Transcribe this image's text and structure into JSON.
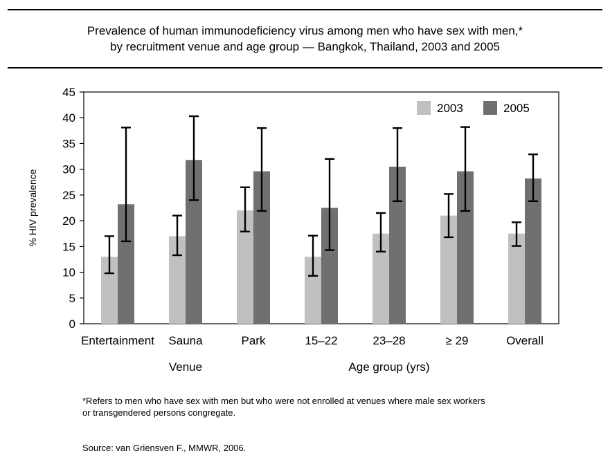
{
  "header": {
    "title_line1": "Prevalence of human immunodeficiency virus among men who have sex with men,*",
    "title_line2": "by recruitment venue and age group — Bangkok, Thailand, 2003 and 2005"
  },
  "footnote": {
    "line1": "*Refers to men who have sex with men but who were not enrolled at venues where male sex workers",
    "line2": "or transgendered persons congregate.",
    "source": "Source: van Griensven F.,  MMWR, 2006."
  },
  "chart_data": {
    "type": "bar",
    "ylabel": "% HIV prevalence",
    "ylim": [
      0,
      45
    ],
    "yticks": [
      0,
      5,
      10,
      15,
      20,
      25,
      30,
      35,
      40,
      45
    ],
    "grid": false,
    "legend_position": "top-right",
    "categories": [
      "Entertainment",
      "Sauna",
      "Park",
      "15–22",
      "23–28",
      "≥ 29",
      "Overall"
    ],
    "group_labels": [
      {
        "label": "Venue",
        "categories": [
          "Entertainment",
          "Sauna",
          "Park"
        ]
      },
      {
        "label": "Age group (yrs)",
        "categories": [
          "15–22",
          "23–28",
          "≥ 29"
        ]
      }
    ],
    "series": [
      {
        "name": "2003",
        "color": "#c0c0c0",
        "values": [
          13.0,
          17.0,
          22.0,
          13.0,
          17.5,
          21.0,
          17.5
        ],
        "ci_low": [
          9.8,
          13.3,
          17.9,
          9.3,
          14.0,
          16.8,
          15.1
        ],
        "ci_high": [
          17.0,
          21.0,
          26.5,
          17.1,
          21.5,
          25.2,
          19.7
        ]
      },
      {
        "name": "2005",
        "color": "#707070",
        "values": [
          23.2,
          31.8,
          29.6,
          22.5,
          30.5,
          29.6,
          28.2
        ],
        "ci_low": [
          16.0,
          24.0,
          21.9,
          14.3,
          23.8,
          21.9,
          23.8
        ],
        "ci_high": [
          38.1,
          40.3,
          38.0,
          32.0,
          38.0,
          38.2,
          32.9
        ]
      }
    ]
  }
}
